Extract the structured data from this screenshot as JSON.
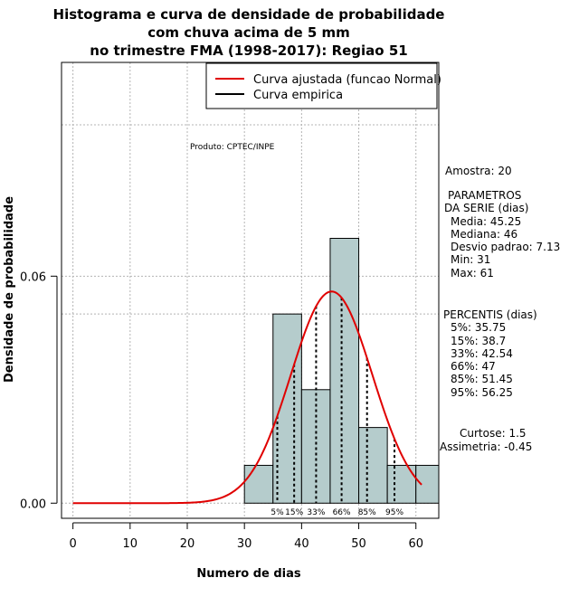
{
  "chart_data": {
    "type": "bar",
    "title": [
      "Histograma e curva de densidade de probabilidade",
      "com chuva acima de 5 mm",
      "no trimestre FMA (1998-2017): Regiao 51"
    ],
    "xlabel": "Numero de dias",
    "ylabel": "Densidade de probabilidade",
    "xlim": [
      -2,
      64
    ],
    "ylim": [
      -0.004,
      0.1165
    ],
    "x_ticks": [
      0,
      10,
      20,
      30,
      40,
      50,
      60
    ],
    "y_ticks": [
      0.0,
      0.06
    ],
    "y_tick_labels": [
      "0.00",
      "0.06"
    ],
    "bins": [
      {
        "x0": 30,
        "x1": 35,
        "density": 0.01
      },
      {
        "x0": 35,
        "x1": 40,
        "density": 0.05
      },
      {
        "x0": 40,
        "x1": 45,
        "density": 0.03
      },
      {
        "x0": 45,
        "x1": 50,
        "density": 0.07
      },
      {
        "x0": 50,
        "x1": 55,
        "density": 0.02
      },
      {
        "x0": 55,
        "x1": 60,
        "density": 0.01
      },
      {
        "x0": 60,
        "x1": 65,
        "density": 0.01
      }
    ],
    "bar_color": "#b5cccc",
    "fitted_curve": {
      "name": "Curva ajustada (funcao Normal)",
      "distribution": "normal",
      "mean": 45.25,
      "sd": 7.13,
      "x_range": [
        0,
        61
      ],
      "color": "#e00000"
    },
    "empirical_curve": {
      "name": "Curva empirica",
      "color": "#000000"
    },
    "percentile_lines": [
      {
        "label": "5%",
        "value": 35.75
      },
      {
        "label": "15%",
        "value": 38.7
      },
      {
        "label": "33%",
        "value": 42.54
      },
      {
        "label": "66%",
        "value": 47
      },
      {
        "label": "85%",
        "value": 51.45
      },
      {
        "label": "95%",
        "value": 56.25
      }
    ],
    "grid_x": [
      0,
      10,
      20,
      30,
      40,
      50,
      60
    ],
    "grid_y": [
      0,
      0.06
    ],
    "grid_h_extra": [
      0.05,
      0.1
    ],
    "legend_position": "top-right",
    "annotation": "Produto: CPTEC/INPE"
  },
  "stats": {
    "sample": "Amostra: 20",
    "params_header": "PARAMETROS",
    "params_sub": "DA SERIE (dias)",
    "media": "Media: 45.25",
    "mediana": "Mediana: 46",
    "desvio": "Desvio padrao: 7.13",
    "min": "Min: 31",
    "max": "Max: 61",
    "percentis_header": "PERCENTIS (dias)",
    "p5": "5%: 35.75",
    "p15": "15%: 38.7",
    "p33": "33%: 42.54",
    "p66": "66%: 47",
    "p85": "85%: 51.45",
    "p95": "95%: 56.25",
    "curtose": "Curtose: 1.5",
    "assimetria": "Assimetria: -0.45"
  }
}
